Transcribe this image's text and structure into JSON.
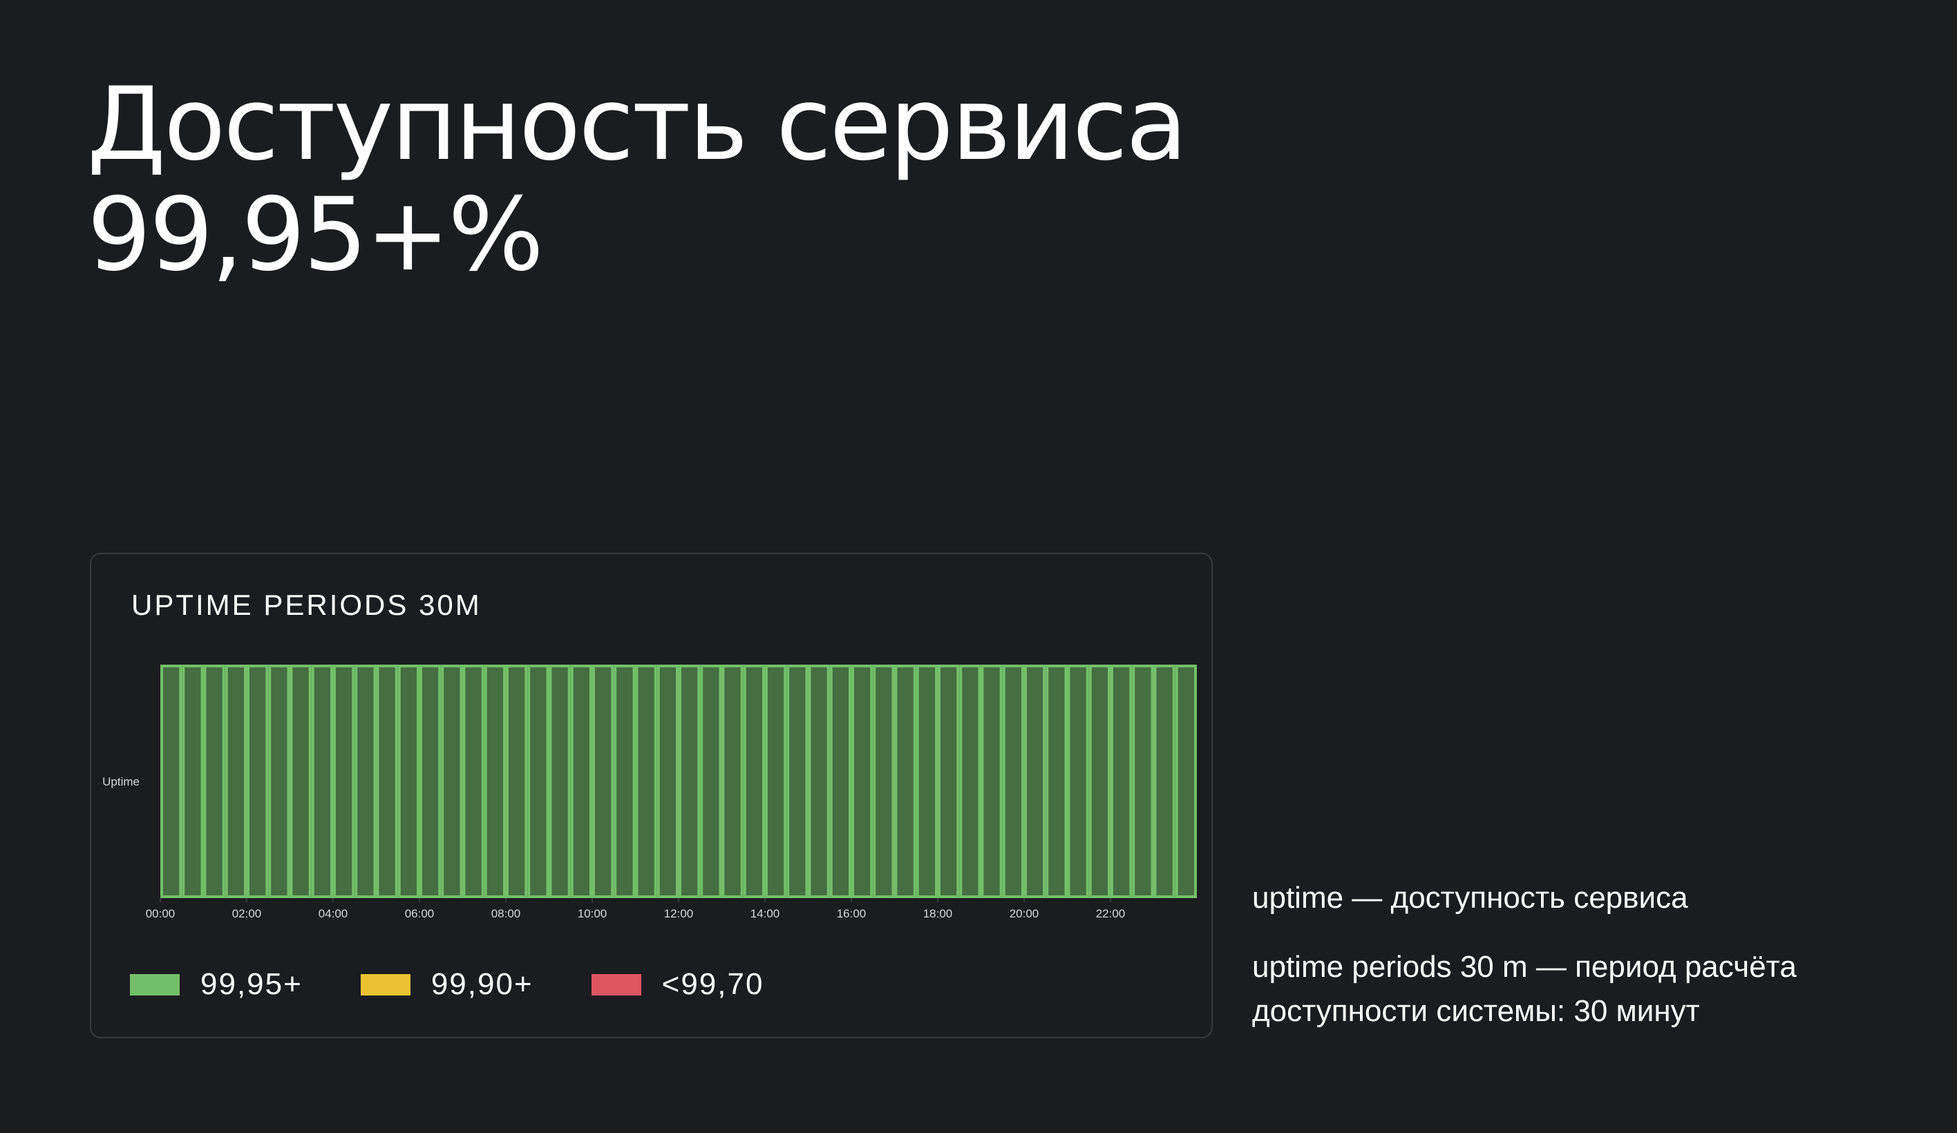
{
  "page": {
    "title_line1": "Доступность сервиса",
    "title_line2": "99,95+%"
  },
  "notes": {
    "line1": "uptime — доступность сервиса",
    "line2a": "uptime periods 30 m — период расчёта",
    "line2b": "доступности системы: 30 минут"
  },
  "chart_data": {
    "type": "bar",
    "title": "UPTIME PERIODS 30M",
    "ylabel": "Uptime",
    "series_row": "Uptime",
    "x_tick_labels": [
      "00:00",
      "02:00",
      "04:00",
      "06:00",
      "08:00",
      "10:00",
      "12:00",
      "14:00",
      "16:00",
      "18:00",
      "20:00",
      "22:00"
    ],
    "period_minutes": 30,
    "periods": [
      "99,95+",
      "99,95+",
      "99,95+",
      "99,95+",
      "99,95+",
      "99,95+",
      "99,95+",
      "99,95+",
      "99,95+",
      "99,95+",
      "99,95+",
      "99,95+",
      "99,95+",
      "99,95+",
      "99,95+",
      "99,95+",
      "99,95+",
      "99,95+",
      "99,95+",
      "99,95+",
      "99,95+",
      "99,95+",
      "99,95+",
      "99,95+",
      "99,95+",
      "99,95+",
      "99,95+",
      "99,95+",
      "99,95+",
      "99,95+",
      "99,95+",
      "99,95+",
      "99,95+",
      "99,95+",
      "99,95+",
      "99,95+",
      "99,95+",
      "99,95+",
      "99,95+",
      "99,95+",
      "99,95+",
      "99,95+",
      "99,95+",
      "99,95+",
      "99,95+",
      "99,95+",
      "99,95+",
      "99,95+"
    ],
    "legend": [
      {
        "label": "99,95+",
        "color": "#73bf69",
        "fill": "#456e41"
      },
      {
        "label": "99,90+",
        "color": "#eac22f",
        "fill": "#6e5f24"
      },
      {
        "label": "<99,70",
        "color": "#e05560",
        "fill": "#6e3036"
      }
    ],
    "legend_position": "bottom-left",
    "grid": false
  }
}
